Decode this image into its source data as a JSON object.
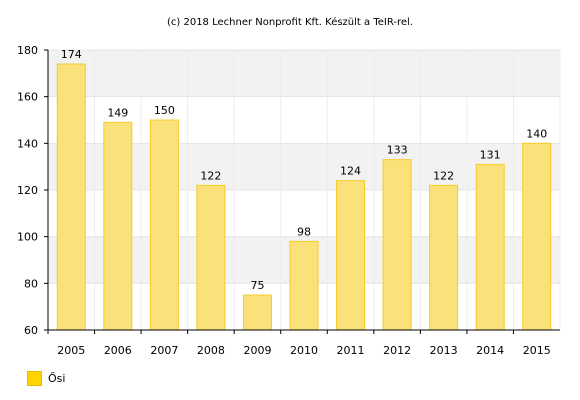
{
  "copyright": "(c) 2018 Lechner Nonprofit Kft. Készült a TeIR-rel.",
  "chart_data": {
    "type": "bar",
    "categories": [
      "2005",
      "2006",
      "2007",
      "2008",
      "2009",
      "2010",
      "2011",
      "2012",
      "2013",
      "2014",
      "2015"
    ],
    "series": [
      {
        "name": "Ősi",
        "values": [
          174,
          149,
          150,
          122,
          75,
          98,
          124,
          133,
          122,
          131,
          140
        ]
      }
    ],
    "ylim": [
      60,
      180
    ],
    "yticks": [
      60,
      80,
      100,
      120,
      140,
      160,
      180
    ],
    "grid": true,
    "legend": "bottom-left",
    "bar_fill": "#fbe17a",
    "bar_stroke": "#f5cc2a",
    "legend_color": "#ffd400"
  }
}
